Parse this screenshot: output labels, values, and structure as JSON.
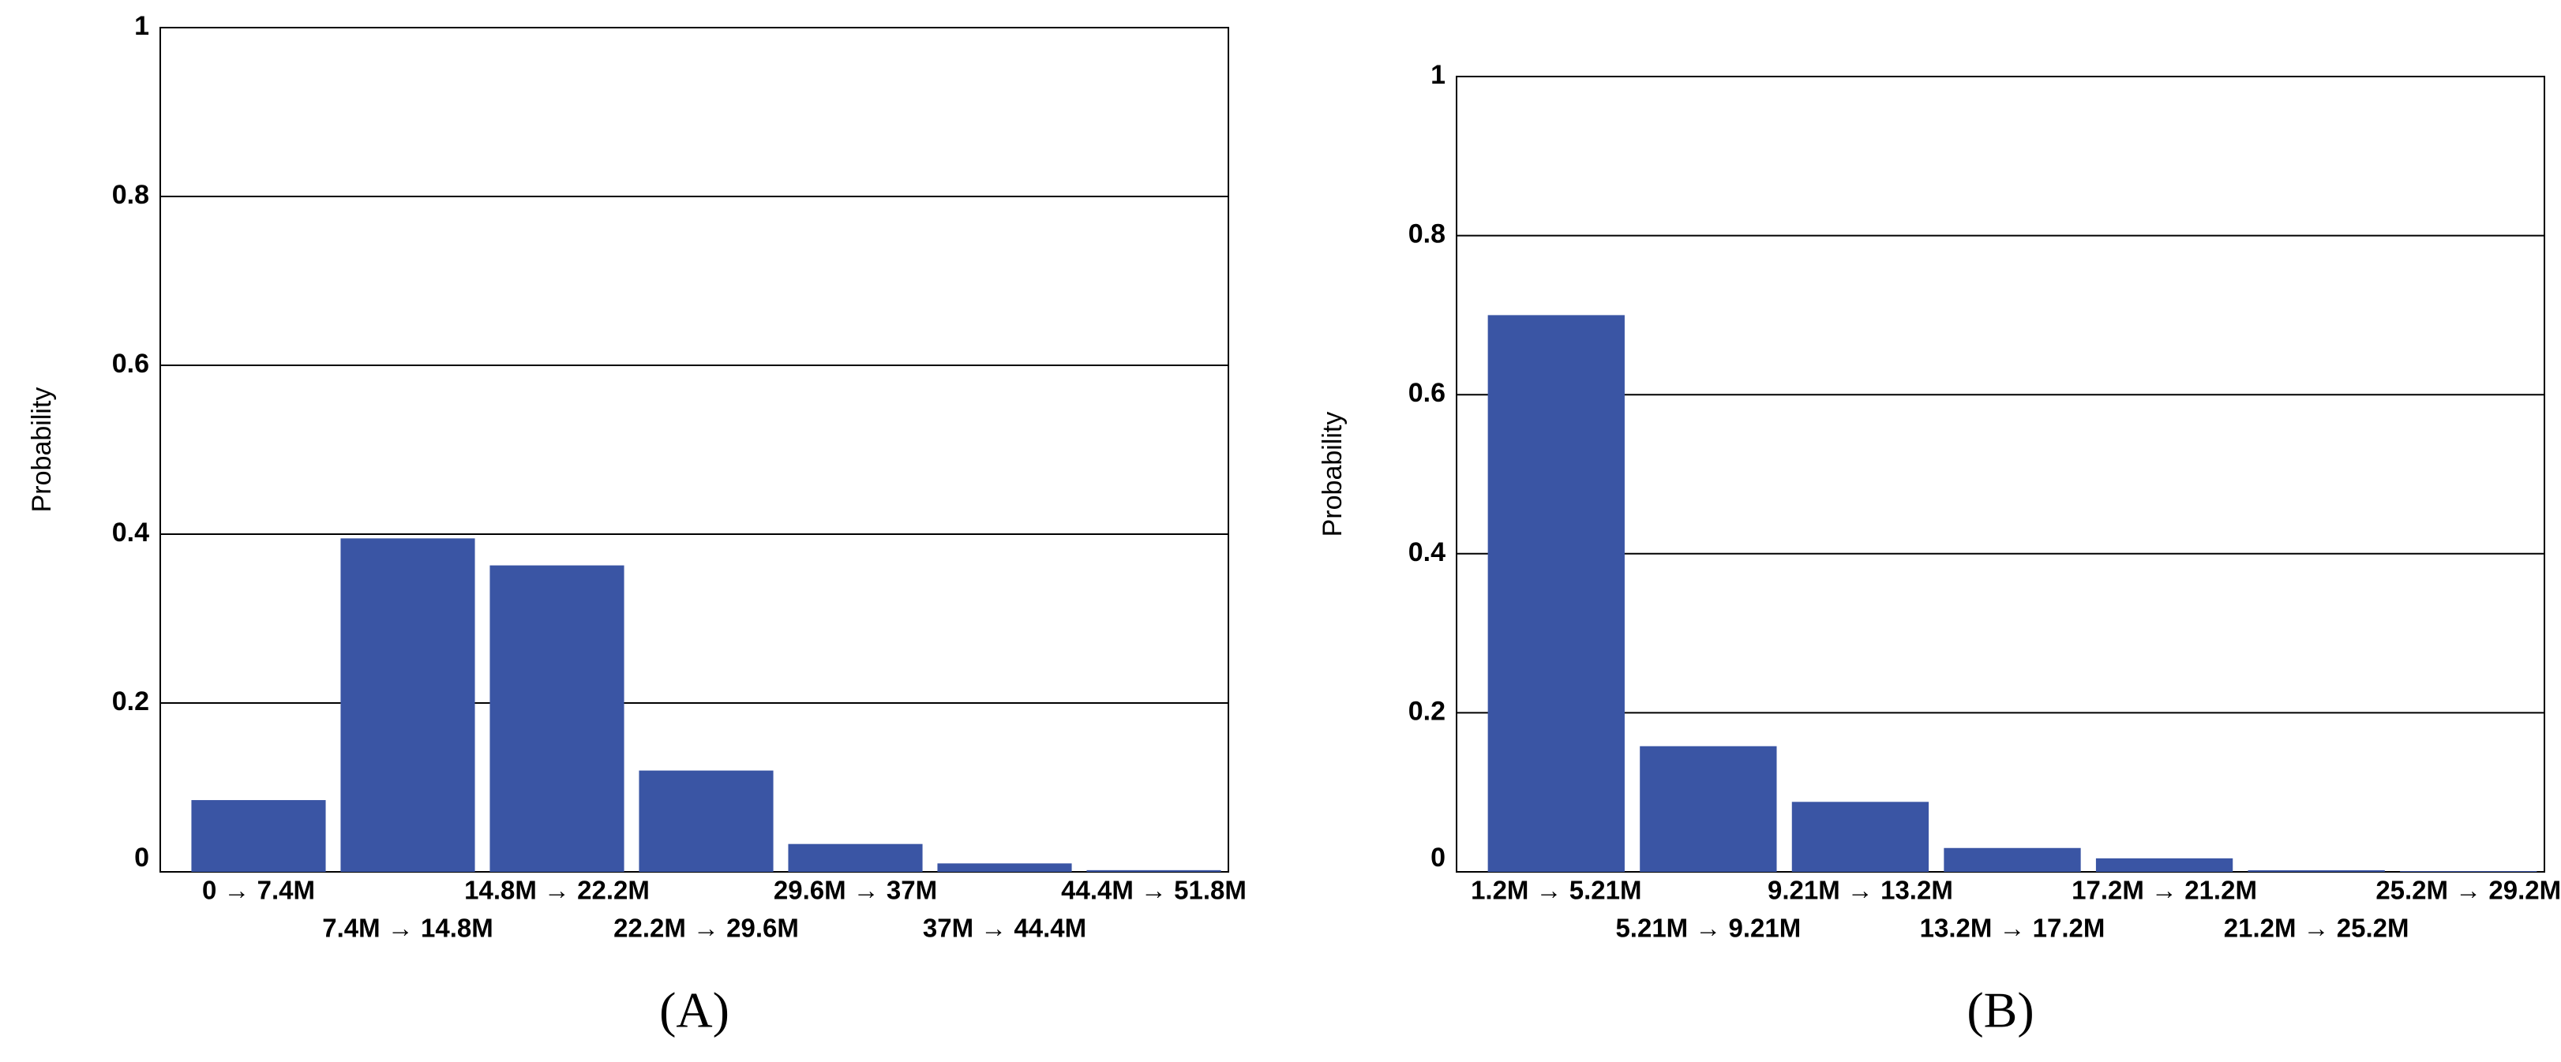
{
  "chart_data": [
    {
      "type": "bar",
      "label": "(A)",
      "ylabel": "Probability",
      "categories": [
        "0 → 7.4M",
        "7.4M → 14.8M",
        "14.8M → 22.2M",
        "22.2M → 29.6M",
        "29.6M → 37M",
        "37M → 44.4M",
        "44.4M → 51.8M"
      ],
      "values": [
        0.085,
        0.395,
        0.363,
        0.12,
        0.033,
        0.01,
        0.002
      ],
      "color": "#3a55a4",
      "ylim": [
        0,
        1
      ],
      "yticks": [
        0,
        0.2,
        0.4,
        0.6,
        0.8,
        1
      ],
      "grid": true
    },
    {
      "type": "bar",
      "label": "(B)",
      "ylabel": "Probability",
      "categories": [
        "1.2M → 5.21M",
        "5.21M → 9.21M",
        "9.21M → 13.2M",
        "13.2M → 17.2M",
        "17.2M → 21.2M",
        "21.2M → 25.2M",
        "25.2M → 29.2M"
      ],
      "values": [
        0.7,
        0.158,
        0.088,
        0.03,
        0.017,
        0.002,
        0.001
      ],
      "color": "#3a55a4",
      "ylim": [
        0,
        1
      ],
      "yticks": [
        0,
        0.2,
        0.4,
        0.6,
        0.8,
        1
      ],
      "grid": true
    }
  ]
}
